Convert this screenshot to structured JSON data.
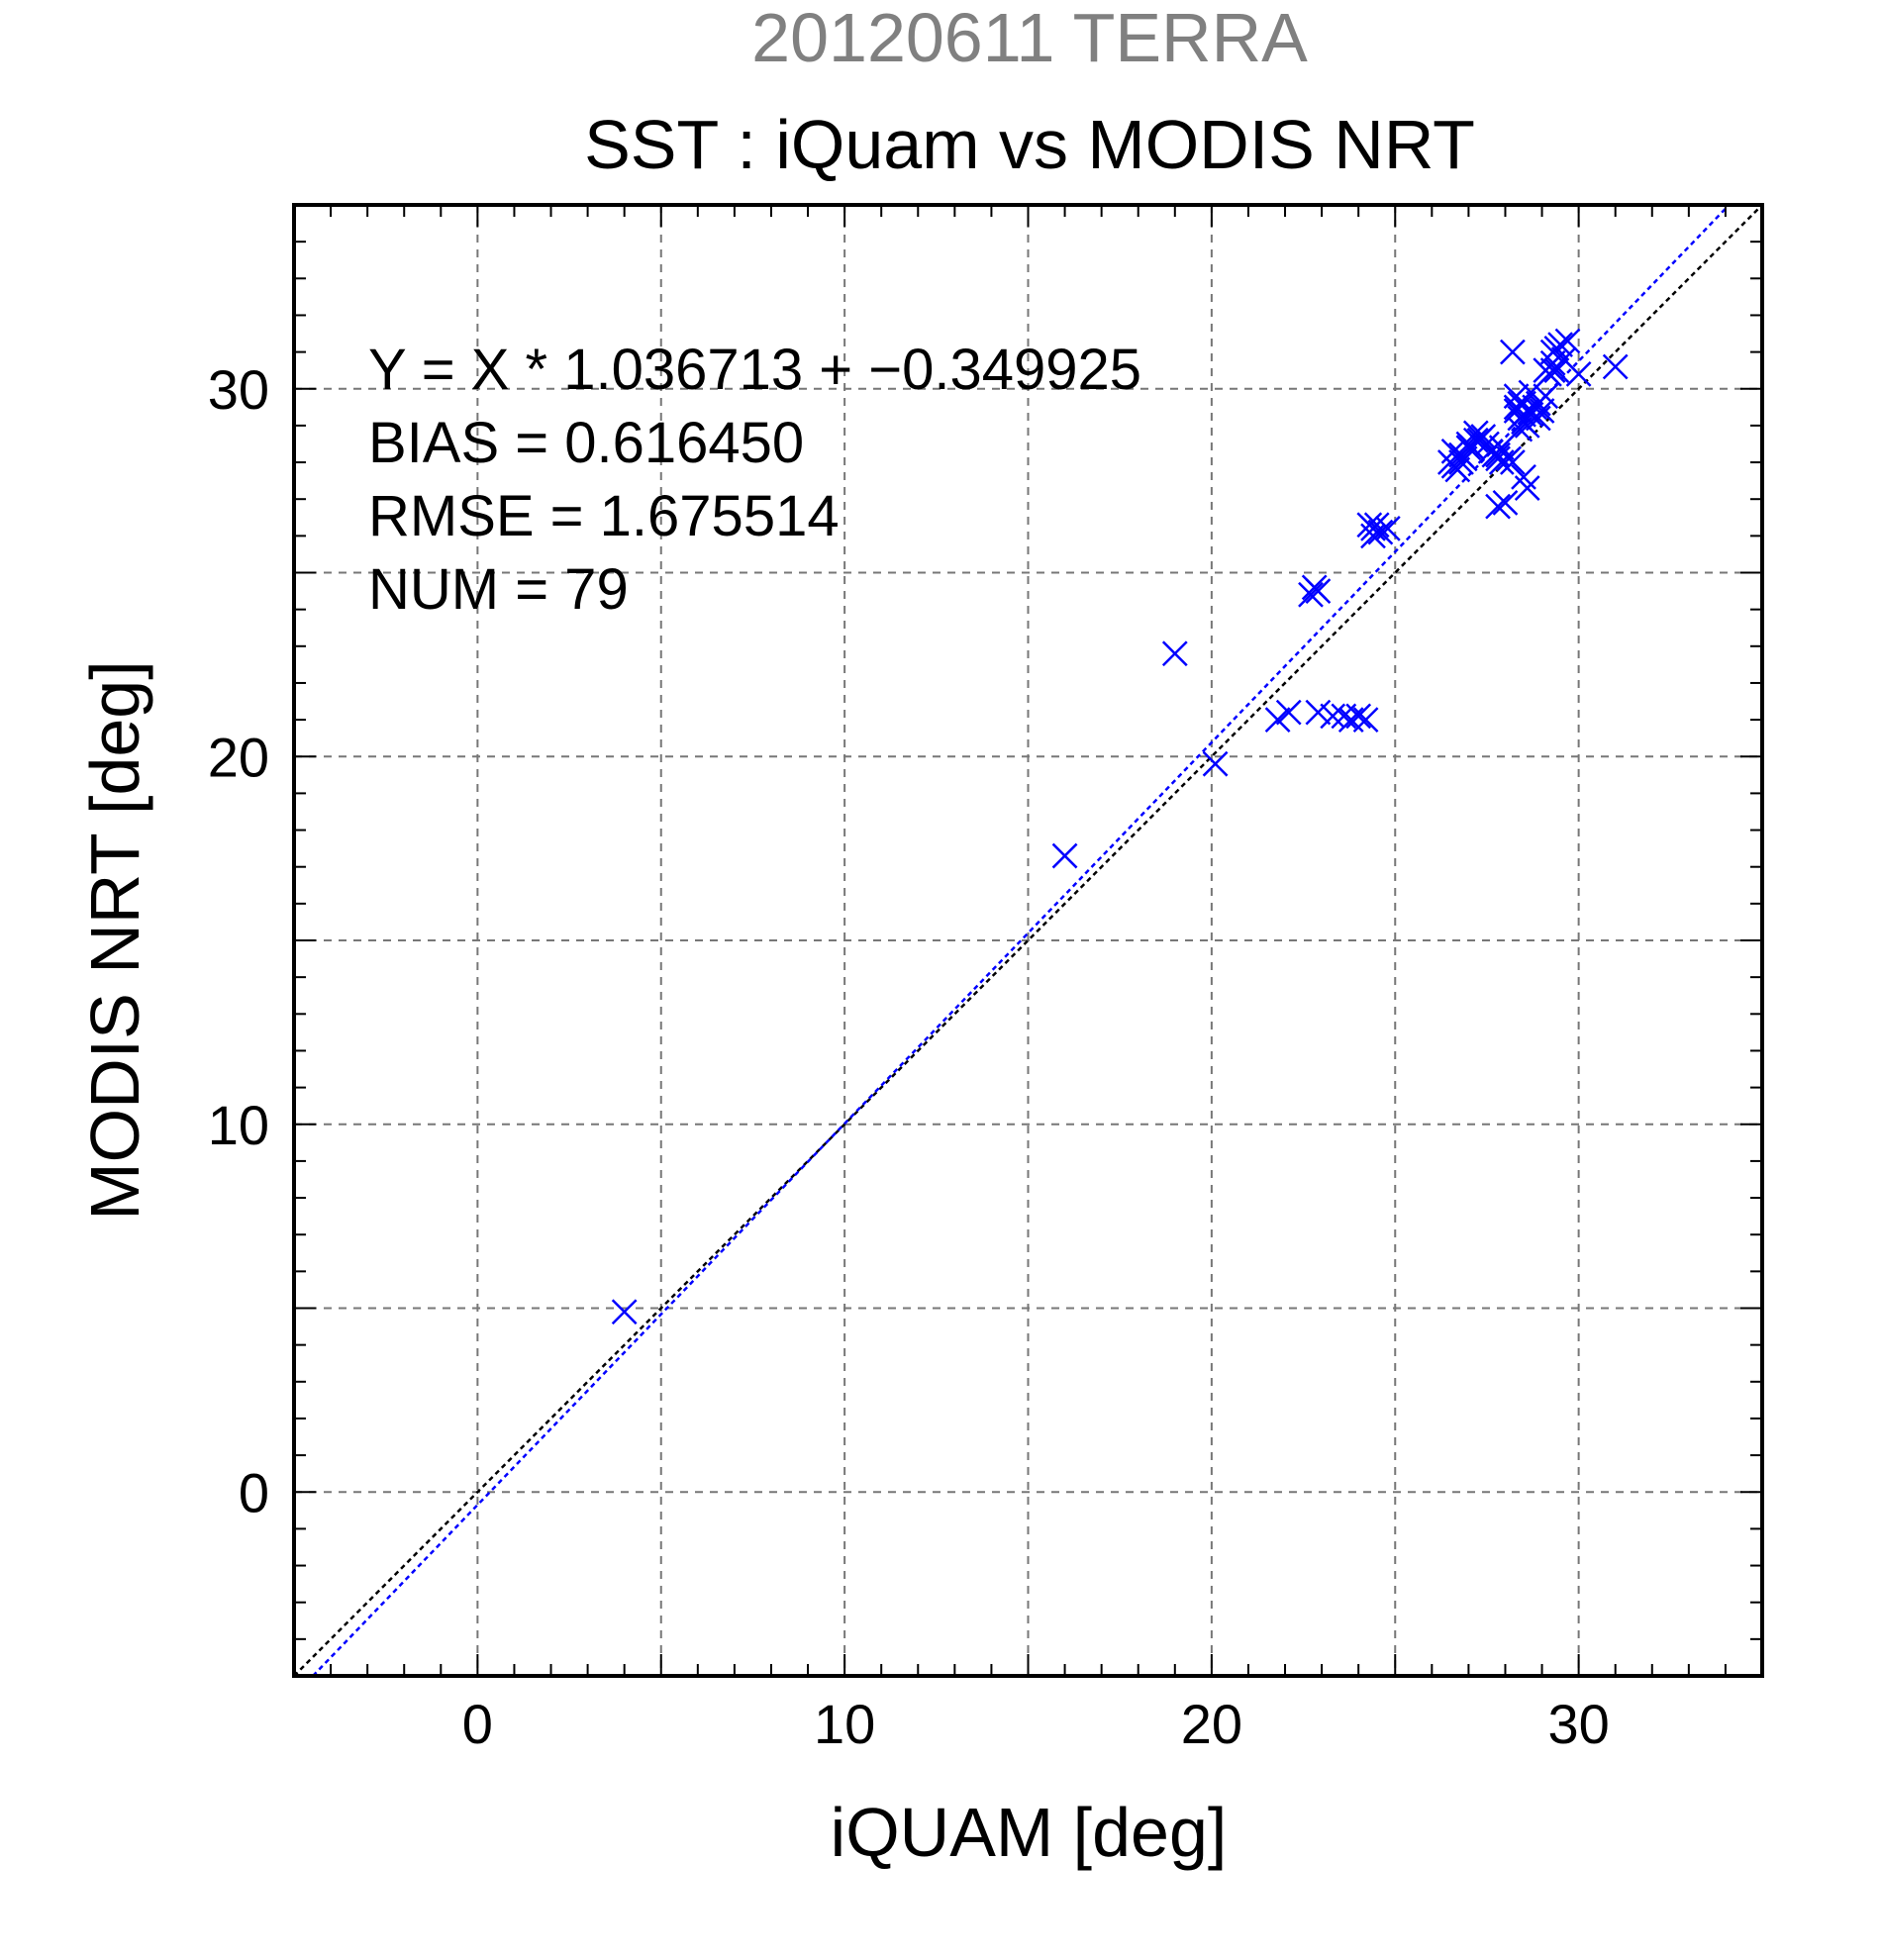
{
  "chart_data": {
    "type": "scatter",
    "suptitle": "20120611 TERRA",
    "title": "SST : iQuam vs MODIS NRT",
    "xlabel": "iQUAM [deg]",
    "ylabel": "MODIS NRT [deg]",
    "xlim": [
      -5,
      35
    ],
    "ylim": [
      -5,
      35
    ],
    "xticks": [
      0,
      10,
      20,
      30
    ],
    "yticks": [
      0,
      10,
      20,
      30
    ],
    "grid": true,
    "annotations": [
      "Y = X * 1.036713 + −0.349925",
      "BIAS = 0.616450",
      "RMSE = 1.675514",
      "NUM = 79"
    ],
    "fit": {
      "slope": 1.036713,
      "intercept": -0.349925
    },
    "colors": {
      "points": "#0000ff",
      "fit_line": "#0000ff",
      "identity_line": "#000000",
      "suptitle": "#808080"
    },
    "series": [
      {
        "marker": "x",
        "points": [
          [
            4.0,
            4.9
          ],
          [
            16.0,
            17.3
          ],
          [
            19.0,
            22.8
          ],
          [
            20.1,
            19.8
          ],
          [
            21.8,
            21.0
          ],
          [
            22.1,
            21.2
          ],
          [
            22.7,
            24.4
          ],
          [
            22.8,
            24.6
          ],
          [
            22.9,
            24.5
          ],
          [
            22.9,
            21.2
          ],
          [
            23.3,
            21.1
          ],
          [
            23.6,
            21.1
          ],
          [
            23.8,
            21.0
          ],
          [
            24.0,
            21.1
          ],
          [
            24.2,
            21.0
          ],
          [
            24.3,
            26.3
          ],
          [
            24.4,
            26.2
          ],
          [
            24.5,
            26.3
          ],
          [
            24.6,
            26.1
          ],
          [
            24.8,
            26.2
          ],
          [
            26.5,
            28.0
          ],
          [
            26.6,
            28.3
          ],
          [
            26.7,
            27.8
          ],
          [
            26.8,
            28.2
          ],
          [
            26.9,
            28.1
          ],
          [
            27.0,
            28.5
          ],
          [
            27.1,
            28.4
          ],
          [
            27.2,
            28.8
          ],
          [
            27.3,
            28.6
          ],
          [
            27.4,
            28.7
          ],
          [
            27.5,
            28.5
          ],
          [
            27.7,
            28.2
          ],
          [
            27.8,
            28.1
          ],
          [
            27.9,
            28.4
          ],
          [
            27.8,
            26.8
          ],
          [
            28.0,
            26.9
          ],
          [
            28.1,
            28.1
          ],
          [
            28.2,
            31.0
          ],
          [
            28.3,
            29.5
          ],
          [
            28.3,
            29.8
          ],
          [
            28.4,
            29.2
          ],
          [
            28.4,
            28.9
          ],
          [
            28.5,
            29.6
          ],
          [
            28.5,
            29.1
          ],
          [
            28.5,
            27.6
          ],
          [
            28.6,
            27.3
          ],
          [
            28.6,
            29.4
          ],
          [
            28.7,
            29.9
          ],
          [
            28.7,
            29.3
          ],
          [
            28.8,
            29.5
          ],
          [
            28.9,
            29.2
          ],
          [
            29.0,
            29.4
          ],
          [
            29.1,
            29.8
          ],
          [
            29.2,
            30.4
          ],
          [
            29.3,
            30.7
          ],
          [
            29.3,
            31.0
          ],
          [
            29.4,
            30.5
          ],
          [
            29.5,
            31.2
          ],
          [
            29.6,
            30.8
          ],
          [
            29.7,
            31.3
          ],
          [
            30.0,
            30.4
          ],
          [
            31.0,
            30.6
          ],
          [
            28.2,
            28.0
          ],
          [
            26.6,
            27.9
          ],
          [
            27.9,
            28.0
          ],
          [
            28.4,
            29.6
          ],
          [
            29.3,
            30.5
          ],
          [
            28.6,
            29.0
          ],
          [
            27.6,
            28.3
          ],
          [
            26.8,
            28.0
          ],
          [
            27.2,
            28.6
          ],
          [
            28.9,
            29.6
          ],
          [
            29.4,
            31.1
          ],
          [
            28.5,
            29.3
          ],
          [
            27.0,
            28.4
          ],
          [
            28.3,
            29.4
          ],
          [
            27.8,
            28.2
          ],
          [
            29.1,
            30.5
          ],
          [
            24.4,
            26.0
          ]
        ]
      }
    ]
  }
}
